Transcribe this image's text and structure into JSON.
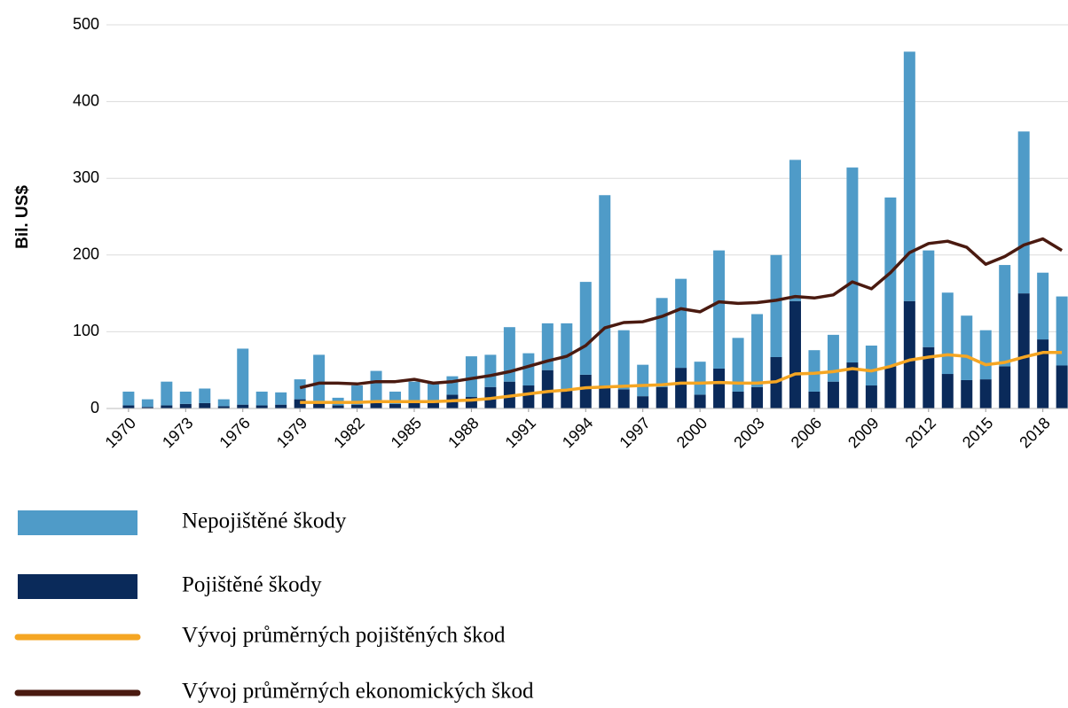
{
  "chart_data": {
    "type": "bar",
    "stacked": true,
    "ylabel": "Bil. US$",
    "x": [
      1970,
      1971,
      1972,
      1973,
      1974,
      1975,
      1976,
      1977,
      1978,
      1979,
      1980,
      1981,
      1982,
      1983,
      1984,
      1985,
      1986,
      1987,
      1988,
      1989,
      1990,
      1991,
      1992,
      1993,
      1994,
      1995,
      1996,
      1997,
      1998,
      1999,
      2000,
      2001,
      2002,
      2003,
      2004,
      2005,
      2006,
      2007,
      2008,
      2009,
      2010,
      2011,
      2012,
      2013,
      2014,
      2015,
      2016,
      2017,
      2018,
      2019
    ],
    "xlim": [
      1969.4,
      2019.32
    ],
    "xticks": [
      1970,
      1973,
      1976,
      1979,
      1982,
      1985,
      1988,
      1991,
      1994,
      1997,
      2000,
      2003,
      2006,
      2009,
      2012,
      2015,
      2018
    ],
    "ylim": [
      0,
      500
    ],
    "yticks": [
      0,
      100,
      200,
      300,
      400,
      500
    ],
    "grid": true,
    "series": [
      {
        "name": "Nepojištěné škody",
        "type": "bar",
        "color": "#4f9bc8",
        "values": [
          18,
          10,
          31,
          16,
          19,
          9,
          73,
          18,
          16,
          26,
          62,
          10,
          25,
          42,
          16,
          27,
          23,
          24,
          53,
          42,
          71,
          42,
          61,
          86,
          121,
          248,
          77,
          41,
          116,
          116,
          43,
          154,
          70,
          95,
          133,
          184,
          54,
          61,
          254,
          52,
          220,
          325,
          126,
          106,
          84,
          64,
          132,
          211,
          87,
          90
        ]
      },
      {
        "name": "Pojištěné škody",
        "type": "bar",
        "color": "#0a2a5a",
        "values": [
          4,
          2,
          4,
          6,
          7,
          3,
          5,
          4,
          5,
          12,
          8,
          4,
          5,
          7,
          6,
          8,
          10,
          18,
          15,
          28,
          35,
          30,
          50,
          25,
          44,
          30,
          25,
          16,
          28,
          53,
          18,
          52,
          22,
          28,
          67,
          140,
          22,
          35,
          60,
          30,
          55,
          140,
          80,
          45,
          37,
          38,
          55,
          150,
          90,
          56
        ]
      },
      {
        "name": "Vývoj průměrných pojištěných škod",
        "type": "line",
        "color": "#f5a623",
        "values": [
          null,
          null,
          null,
          null,
          null,
          null,
          null,
          null,
          null,
          8,
          8,
          8,
          8,
          9,
          9,
          9,
          9,
          10,
          11,
          13,
          16,
          19,
          22,
          24,
          27,
          28,
          29,
          30,
          31,
          33,
          33,
          34,
          33,
          33,
          35,
          45,
          46,
          48,
          52,
          49,
          55,
          63,
          67,
          70,
          68,
          57,
          60,
          67,
          73,
          73
        ]
      },
      {
        "name": "Vývoj průměrných ekonomických škod",
        "type": "line",
        "color": "#4a1a10",
        "values": [
          null,
          null,
          null,
          null,
          null,
          null,
          null,
          null,
          null,
          27,
          33,
          33,
          32,
          35,
          35,
          38,
          33,
          35,
          39,
          43,
          48,
          55,
          62,
          68,
          82,
          105,
          112,
          113,
          120,
          130,
          126,
          139,
          137,
          138,
          141,
          146,
          144,
          148,
          165,
          156,
          177,
          203,
          215,
          218,
          210,
          188,
          198,
          213,
          221,
          206
        ]
      }
    ]
  }
}
